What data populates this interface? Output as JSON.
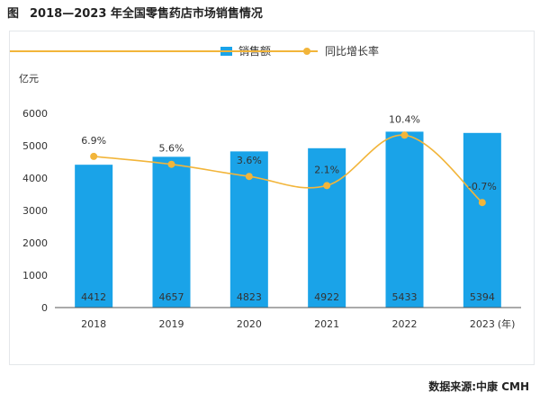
{
  "figure": {
    "label": "图",
    "title": "2018—2023 年全国零售药店市场销售情况",
    "source": "数据来源:中康 CMH"
  },
  "chart_data": {
    "type": "bar",
    "categories": [
      "2018",
      "2019",
      "2020",
      "2021",
      "2022",
      "2023"
    ],
    "x_unit": "(年)",
    "y_unit": "亿元",
    "ylim": [
      0,
      6000
    ],
    "yticks": [
      0,
      1000,
      2000,
      3000,
      4000,
      5000,
      6000
    ],
    "grid": false,
    "legend_position": "top",
    "series": [
      {
        "name": "销售额",
        "kind": "bar",
        "color": "#1aa3e8",
        "values": [
          4412,
          4657,
          4823,
          4922,
          5433,
          5394
        ],
        "labels": [
          "4412",
          "4657",
          "4823",
          "4922",
          "5433",
          "5394"
        ]
      },
      {
        "name": "同比增长率",
        "kind": "line",
        "color": "#f2b53a",
        "values": [
          6.9,
          5.6,
          3.6,
          2.1,
          10.4,
          -0.7
        ],
        "labels": [
          "6.9%",
          "5.6%",
          "3.6%",
          "2.1%",
          "10.4%",
          "-0.7%"
        ]
      }
    ]
  }
}
